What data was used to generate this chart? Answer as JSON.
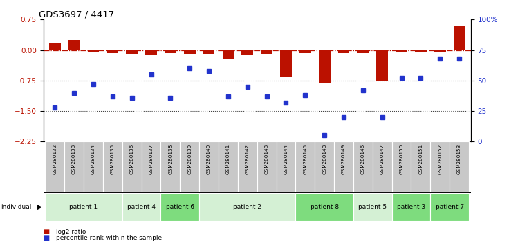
{
  "title": "GDS3697 / 4417",
  "samples": [
    "GSM280132",
    "GSM280133",
    "GSM280134",
    "GSM280135",
    "GSM280136",
    "GSM280137",
    "GSM280138",
    "GSM280139",
    "GSM280140",
    "GSM280141",
    "GSM280142",
    "GSM280143",
    "GSM280144",
    "GSM280145",
    "GSM280148",
    "GSM280149",
    "GSM280146",
    "GSM280147",
    "GSM280150",
    "GSM280151",
    "GSM280152",
    "GSM280153"
  ],
  "log2_ratio": [
    0.18,
    0.25,
    -0.04,
    -0.07,
    -0.1,
    -0.13,
    -0.07,
    -0.1,
    -0.1,
    -0.22,
    -0.13,
    -0.1,
    -0.65,
    -0.07,
    -0.82,
    -0.08,
    -0.07,
    -0.77,
    -0.05,
    -0.04,
    -0.04,
    0.6
  ],
  "percentile": [
    28,
    40,
    47,
    37,
    36,
    55,
    36,
    60,
    58,
    37,
    45,
    37,
    32,
    38,
    5,
    20,
    42,
    20,
    52,
    52,
    68,
    68
  ],
  "patients": [
    {
      "label": "patient 1",
      "start": 0,
      "end": 4,
      "color": "#d4f0d4"
    },
    {
      "label": "patient 4",
      "start": 4,
      "end": 6,
      "color": "#d4f0d4"
    },
    {
      "label": "patient 6",
      "start": 6,
      "end": 8,
      "color": "#7edc7e"
    },
    {
      "label": "patient 2",
      "start": 8,
      "end": 13,
      "color": "#d4f0d4"
    },
    {
      "label": "patient 8",
      "start": 13,
      "end": 16,
      "color": "#7edc7e"
    },
    {
      "label": "patient 5",
      "start": 16,
      "end": 18,
      "color": "#d4f0d4"
    },
    {
      "label": "patient 3",
      "start": 18,
      "end": 20,
      "color": "#7edc7e"
    },
    {
      "label": "patient 7",
      "start": 20,
      "end": 22,
      "color": "#7edc7e"
    }
  ],
  "ylim_left": [
    -2.25,
    0.75
  ],
  "yticks_left": [
    0.75,
    0.0,
    -0.75,
    -1.5,
    -2.25
  ],
  "yticks_right": [
    100,
    75,
    50,
    25,
    0
  ],
  "bar_color": "#bb1100",
  "dot_color": "#2233cc",
  "hline_color": "#bb1100",
  "dotted_line_color": "#444444",
  "legend_bar_label": "log2 ratio",
  "legend_dot_label": "percentile rank within the sample",
  "sample_box_color": "#c8c8c8",
  "bar_width": 0.6
}
